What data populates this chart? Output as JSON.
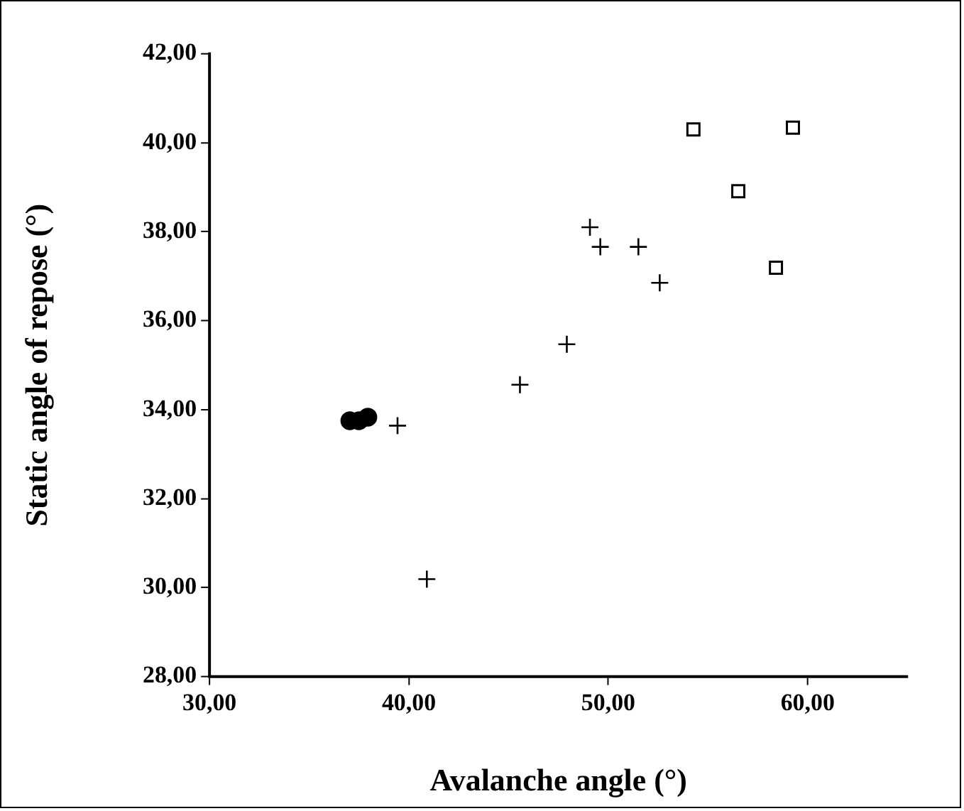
{
  "chart_data": {
    "type": "scatter",
    "xlabel": "Avalanche angle (°)",
    "ylabel": "Static angle of repose (°)",
    "xlim": [
      30,
      65
    ],
    "xticks": [
      {
        "value": 30,
        "label": "30,00"
      },
      {
        "value": 40,
        "label": "40,00"
      },
      {
        "value": 50,
        "label": "50,00"
      },
      {
        "value": 60,
        "label": "60,00"
      }
    ],
    "ylim": [
      28,
      42
    ],
    "yticks": [
      {
        "value": 28,
        "label": "28,00"
      },
      {
        "value": 30,
        "label": "30,00"
      },
      {
        "value": 32,
        "label": "32,00"
      },
      {
        "value": 34,
        "label": "34,00"
      },
      {
        "value": 36,
        "label": "36,00"
      },
      {
        "value": 38,
        "label": "38,00"
      },
      {
        "value": 40,
        "label": "40,00"
      },
      {
        "value": 42,
        "label": "42,00"
      }
    ],
    "grid": false,
    "legend": false,
    "series": [
      {
        "color": "#000000",
        "marker": "circle",
        "x": [
          37.04,
          37.5,
          37.94
        ],
        "values": [
          33.75,
          33.75,
          33.83
        ]
      },
      {
        "color": "#000000",
        "marker": "cross",
        "x": [
          49.08,
          49.6,
          51.51,
          52.58,
          47.92,
          45.57,
          39.43,
          40.9
        ],
        "values": [
          38.1,
          37.66,
          37.66,
          36.85,
          35.47,
          34.56,
          33.64,
          30.19
        ]
      },
      {
        "color": "#000000",
        "marker": "square",
        "x": [
          54.27,
          59.26,
          56.52,
          58.41
        ],
        "values": [
          40.3,
          40.34,
          38.91,
          37.19
        ]
      }
    ]
  }
}
